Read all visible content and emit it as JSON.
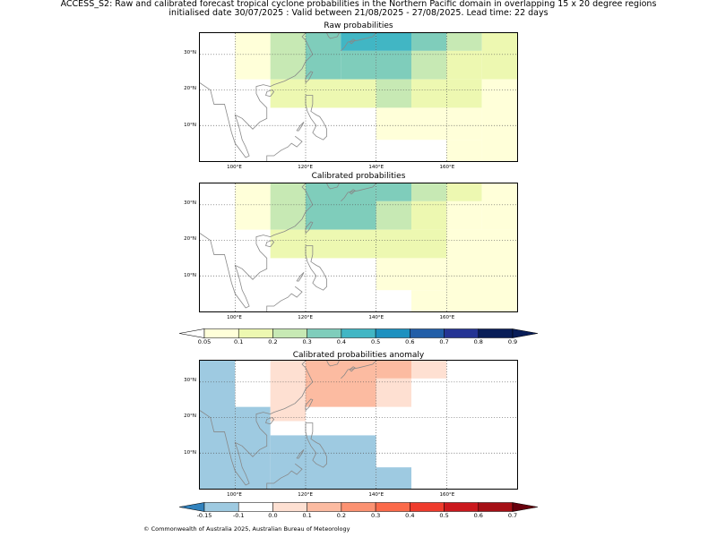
{
  "header": {
    "line1": "ACCESS_S2: Raw and calibrated forecast tropical cyclone probabilities in the Northern Pacific domain in overlapping 15 x 20 degree regions",
    "line2": "initialised date 30/07/2025 :  Valid between 21/08/2025 - 27/08/2025. Lead time: 22 days"
  },
  "extent": {
    "lon": [
      90,
      180
    ],
    "lat": [
      0,
      36
    ]
  },
  "grid": {
    "lons": [
      100,
      120,
      140,
      160
    ],
    "lats": [
      10,
      20,
      30
    ],
    "lon_labels": [
      "100°E",
      "120°E",
      "140°E",
      "160°E"
    ],
    "lat_labels": [
      "10°N",
      "20°N",
      "30°N"
    ]
  },
  "panels": [
    {
      "id": "raw",
      "title": "Raw probabilities",
      "scale": "prob",
      "cells": [
        {
          "lon": [
            100,
            110
          ],
          "lat": [
            23,
            36
          ],
          "v": 0.07
        },
        {
          "lon": [
            110,
            120
          ],
          "lat": [
            23,
            36
          ],
          "v": 0.25
        },
        {
          "lon": [
            120,
            130
          ],
          "lat": [
            23,
            36
          ],
          "v": 0.35
        },
        {
          "lon": [
            130,
            140
          ],
          "lat": [
            31,
            36
          ],
          "v": 0.45
        },
        {
          "lon": [
            130,
            140
          ],
          "lat": [
            23,
            31
          ],
          "v": 0.35
        },
        {
          "lon": [
            140,
            150
          ],
          "lat": [
            31,
            36
          ],
          "v": 0.45
        },
        {
          "lon": [
            140,
            150
          ],
          "lat": [
            23,
            31
          ],
          "v": 0.35
        },
        {
          "lon": [
            150,
            160
          ],
          "lat": [
            31,
            36
          ],
          "v": 0.35
        },
        {
          "lon": [
            150,
            160
          ],
          "lat": [
            23,
            31
          ],
          "v": 0.25
        },
        {
          "lon": [
            160,
            170
          ],
          "lat": [
            31,
            36
          ],
          "v": 0.25
        },
        {
          "lon": [
            160,
            170
          ],
          "lat": [
            23,
            31
          ],
          "v": 0.15
        },
        {
          "lon": [
            170,
            180
          ],
          "lat": [
            23,
            36
          ],
          "v": 0.15
        },
        {
          "lon": [
            110,
            140
          ],
          "lat": [
            15,
            23
          ],
          "v": 0.15
        },
        {
          "lon": [
            140,
            150
          ],
          "lat": [
            15,
            23
          ],
          "v": 0.25
        },
        {
          "lon": [
            150,
            170
          ],
          "lat": [
            15,
            23
          ],
          "v": 0.15
        },
        {
          "lon": [
            170,
            180
          ],
          "lat": [
            0,
            23
          ],
          "v": 0.07
        },
        {
          "lon": [
            140,
            170
          ],
          "lat": [
            6,
            15
          ],
          "v": 0.07
        },
        {
          "lon": [
            160,
            170
          ],
          "lat": [
            0,
            6
          ],
          "v": 0.07
        }
      ]
    },
    {
      "id": "cal",
      "title": "Calibrated probabilities",
      "scale": "prob",
      "cells": [
        {
          "lon": [
            100,
            110
          ],
          "lat": [
            23,
            36
          ],
          "v": 0.07
        },
        {
          "lon": [
            110,
            120
          ],
          "lat": [
            23,
            36
          ],
          "v": 0.25
        },
        {
          "lon": [
            120,
            140
          ],
          "lat": [
            23,
            36
          ],
          "v": 0.35
        },
        {
          "lon": [
            140,
            150
          ],
          "lat": [
            31,
            36
          ],
          "v": 0.35
        },
        {
          "lon": [
            140,
            150
          ],
          "lat": [
            23,
            31
          ],
          "v": 0.25
        },
        {
          "lon": [
            150,
            160
          ],
          "lat": [
            31,
            36
          ],
          "v": 0.25
        },
        {
          "lon": [
            150,
            160
          ],
          "lat": [
            23,
            31
          ],
          "v": 0.15
        },
        {
          "lon": [
            160,
            170
          ],
          "lat": [
            31,
            36
          ],
          "v": 0.15
        },
        {
          "lon": [
            160,
            170
          ],
          "lat": [
            23,
            31
          ],
          "v": 0.07
        },
        {
          "lon": [
            170,
            180
          ],
          "lat": [
            23,
            36
          ],
          "v": 0.07
        },
        {
          "lon": [
            110,
            160
          ],
          "lat": [
            15,
            23
          ],
          "v": 0.15
        },
        {
          "lon": [
            160,
            180
          ],
          "lat": [
            0,
            23
          ],
          "v": 0.07
        },
        {
          "lon": [
            140,
            160
          ],
          "lat": [
            6,
            15
          ],
          "v": 0.07
        },
        {
          "lon": [
            150,
            160
          ],
          "lat": [
            0,
            6
          ],
          "v": 0.07
        }
      ]
    },
    {
      "id": "anom",
      "title": "Calibrated probabilities anomaly",
      "scale": "anom",
      "cells": [
        {
          "lon": [
            90,
            100
          ],
          "lat": [
            0,
            36
          ],
          "v": -0.125
        },
        {
          "lon": [
            100,
            110
          ],
          "lat": [
            23,
            36
          ],
          "v": -0.075
        },
        {
          "lon": [
            100,
            110
          ],
          "lat": [
            0,
            23
          ],
          "v": -0.125
        },
        {
          "lon": [
            110,
            120
          ],
          "lat": [
            19,
            36
          ],
          "v": 0.05
        },
        {
          "lon": [
            110,
            120
          ],
          "lat": [
            0,
            15
          ],
          "v": -0.125
        },
        {
          "lon": [
            120,
            140
          ],
          "lat": [
            23,
            36
          ],
          "v": 0.15
        },
        {
          "lon": [
            140,
            150
          ],
          "lat": [
            31,
            36
          ],
          "v": 0.15
        },
        {
          "lon": [
            140,
            150
          ],
          "lat": [
            23,
            31
          ],
          "v": 0.05
        },
        {
          "lon": [
            150,
            160
          ],
          "lat": [
            31,
            36
          ],
          "v": 0.05
        },
        {
          "lon": [
            170,
            180
          ],
          "lat": [
            31,
            36
          ],
          "v": -0.075
        },
        {
          "lon": [
            160,
            180
          ],
          "lat": [
            0,
            31
          ],
          "v": -0.075
        },
        {
          "lon": [
            120,
            140
          ],
          "lat": [
            0,
            15
          ],
          "v": -0.125
        },
        {
          "lon": [
            140,
            160
          ],
          "lat": [
            6,
            15
          ],
          "v": -0.075
        },
        {
          "lon": [
            140,
            150
          ],
          "lat": [
            0,
            6
          ],
          "v": -0.125
        },
        {
          "lon": [
            150,
            160
          ],
          "lat": [
            0,
            6
          ],
          "v": -0.075
        }
      ]
    }
  ],
  "colorbars": {
    "prob": {
      "ticks": [
        "0.05",
        "0.1",
        "0.2",
        "0.3",
        "0.4",
        "0.5",
        "0.6",
        "0.7",
        "0.8",
        "0.9"
      ],
      "bounds": [
        0.05,
        0.1,
        0.2,
        0.3,
        0.4,
        0.5,
        0.6,
        0.7,
        0.8,
        0.9
      ],
      "under": "#ffffff",
      "colors": [
        "#ffffd9",
        "#edf8b1",
        "#c7e9b4",
        "#7fcdbb",
        "#41b6c4",
        "#1d91c0",
        "#225ea8",
        "#253494",
        "#081d58"
      ],
      "over": "#081d58"
    },
    "anom": {
      "ticks": [
        "-0.15",
        "-0.1",
        "0.0",
        "0.1",
        "0.2",
        "0.3",
        "0.4",
        "0.5",
        "0.6",
        "0.7"
      ],
      "bounds": [
        -0.15,
        -0.1,
        0.0,
        0.1,
        0.2,
        0.3,
        0.4,
        0.5,
        0.6,
        0.7
      ],
      "under": "#3182bd",
      "colors": [
        "#9ecae1",
        "#ffffff",
        "#fee0d2",
        "#fcbba1",
        "#fc9272",
        "#fb6a4a",
        "#ef3b2c",
        "#cb181d",
        "#a50f15"
      ],
      "over": "#67000d"
    }
  },
  "footer": "© Commonwealth of Australia 2025, Australian Bureau of Meteorology"
}
